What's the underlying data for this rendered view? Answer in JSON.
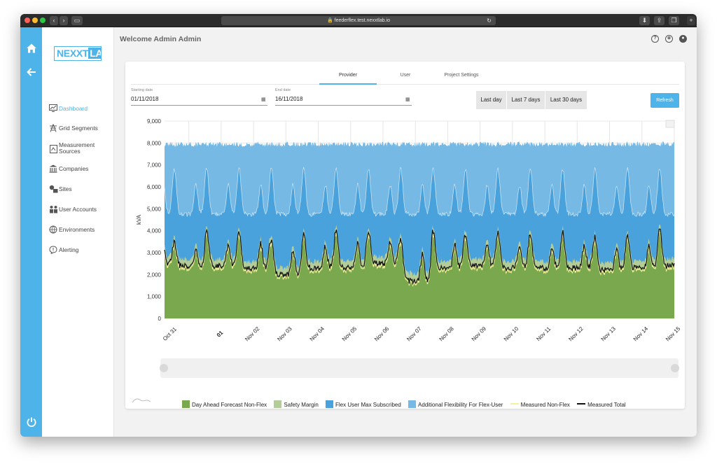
{
  "browser": {
    "url": "feederflex.test.nexxtlab.io"
  },
  "app": {
    "logo_left": "NEXXT",
    "logo_right": "LAB",
    "welcome": "Welcome Admin Admin"
  },
  "nav": {
    "items": [
      {
        "label": "Dashboard",
        "icon": "chart-icon",
        "active": true
      },
      {
        "label": "Grid Segments",
        "icon": "pylon-icon",
        "active": false
      },
      {
        "label": "Measurement Sources",
        "icon": "meter-icon",
        "active": false
      },
      {
        "label": "Companies",
        "icon": "building-icon",
        "active": false
      },
      {
        "label": "Sites",
        "icon": "sites-icon",
        "active": false
      },
      {
        "label": "User Accounts",
        "icon": "users-icon",
        "active": false
      },
      {
        "label": "Environments",
        "icon": "globe-icon",
        "active": false
      },
      {
        "label": "Alerting",
        "icon": "alert-icon",
        "active": false
      }
    ]
  },
  "tabs": {
    "provider": "Provider",
    "user": "User",
    "project": "Project Settings",
    "active": "Provider"
  },
  "filters": {
    "start_label": "Starting date",
    "start_value": "01/11/2018",
    "end_label": "End date",
    "end_value": "16/11/2018",
    "range_buttons": [
      "Last day",
      "Last 7 days",
      "Last 30 days"
    ],
    "refresh": "Refresh"
  },
  "colors": {
    "accent": "#4db3e8",
    "forecast": "#7aa84f",
    "margin": "#b4cd98",
    "flex_max": "#4aa2dd",
    "additional": "#75b9e4",
    "non_flex_line": "#f6f19a",
    "total_line": "#111111"
  },
  "chart_data": {
    "type": "area",
    "ylabel": "kVA",
    "ylim": [
      0,
      9000
    ],
    "yticks": [
      "0",
      "1,000",
      "2,000",
      "3,000",
      "4,000",
      "5,000",
      "6,000",
      "7,000",
      "8,000",
      "9,000"
    ],
    "xticks": [
      "Oct 31",
      "01",
      "Nov 02",
      "Nov 03",
      "Nov 04",
      "Nov 05",
      "Nov 06",
      "Nov 07",
      "Nov 08",
      "Nov 09",
      "Nov 10",
      "Nov 11",
      "Nov 12",
      "Nov 13",
      "Nov 14",
      "Nov 15"
    ],
    "bold_xtick": "01",
    "days": [
      "Oct 31",
      "Nov 01",
      "Nov 02",
      "Nov 03",
      "Nov 04",
      "Nov 05",
      "Nov 06",
      "Nov 07",
      "Nov 08",
      "Nov 09",
      "Nov 10",
      "Nov 11",
      "Nov 12",
      "Nov 13",
      "Nov 14",
      "Nov 15"
    ],
    "daily_peak_total_kva": [
      3700,
      4200,
      4300,
      3900,
      4100,
      4400,
      4200,
      4000,
      4300,
      4100,
      4200,
      4100,
      4200,
      4000,
      4100,
      4400
    ],
    "daily_min_total_kva": [
      2400,
      2400,
      2300,
      2000,
      2300,
      2300,
      2500,
      1700,
      2300,
      2400,
      2300,
      2300,
      2300,
      2200,
      2300,
      2400
    ],
    "series": [
      {
        "name": "Day Ahead Forecast Non-Flex",
        "kind": "area",
        "color": "#7aa84f",
        "approx_range_kva": [
          1900,
          4100
        ]
      },
      {
        "name": "Safety Margin",
        "kind": "area",
        "color": "#b4cd98",
        "approx_range_kva": [
          2800,
          4400
        ]
      },
      {
        "name": "Flex User Max Subscribed",
        "kind": "area",
        "color": "#4aa2dd",
        "approx_range_kva": [
          4800,
          7300
        ]
      },
      {
        "name": "Additional Flexibility For Flex-User",
        "kind": "area",
        "color": "#75b9e4",
        "approx_level_kva": 8000
      },
      {
        "name": "Measured Non-Flex",
        "kind": "line",
        "color": "#f6f19a"
      },
      {
        "name": "Measured Total",
        "kind": "line",
        "color": "#111111"
      }
    ],
    "grid": true,
    "legend_position": "bottom"
  }
}
